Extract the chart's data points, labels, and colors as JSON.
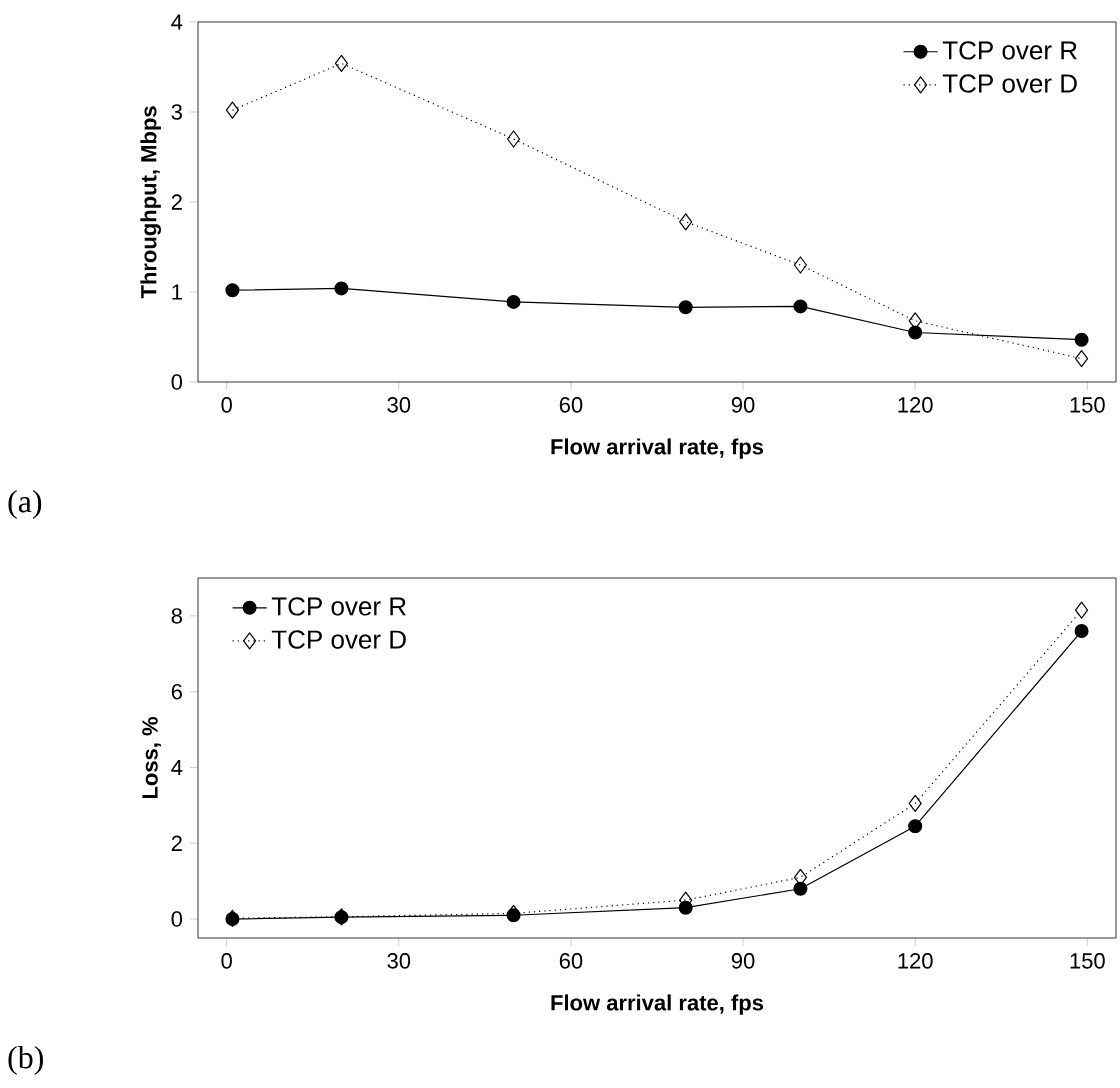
{
  "chart_data": [
    {
      "type": "line",
      "xlabel": "Flow arrival rate, fps",
      "ylabel": "Throughput, Mbps",
      "annotations": [
        "(a)"
      ],
      "x": [
        1,
        20,
        50,
        80,
        100,
        120,
        149
      ],
      "xlim": [
        -5,
        155
      ],
      "xticks": [
        0,
        30,
        60,
        90,
        120,
        150
      ],
      "ylim": [
        0,
        4
      ],
      "yticks": [
        0,
        1,
        2,
        3,
        4
      ],
      "legend": "top right",
      "grid": false,
      "series": [
        {
          "name": "TCP over R",
          "color": "#000000",
          "marker": "circle",
          "line_style": "solid",
          "values": [
            1.02,
            1.04,
            0.89,
            0.83,
            0.84,
            0.55,
            0.47
          ]
        },
        {
          "name": "TCP over D",
          "color": "#000000",
          "marker": "diamond",
          "line_style": "dotted",
          "values": [
            3.02,
            3.54,
            2.7,
            1.78,
            1.3,
            0.68,
            0.26
          ]
        }
      ]
    },
    {
      "type": "line",
      "xlabel": "Flow arrival rate, fps",
      "ylabel": "Loss, %",
      "annotations": [
        "(b)"
      ],
      "x": [
        1,
        20,
        50,
        80,
        100,
        120,
        149
      ],
      "xlim": [
        -5,
        155
      ],
      "xticks": [
        0,
        30,
        60,
        90,
        120,
        150
      ],
      "ylim": [
        -0.5,
        9
      ],
      "yticks": [
        0,
        2,
        4,
        6,
        8
      ],
      "legend": "top left",
      "grid": false,
      "series": [
        {
          "name": "TCP over R",
          "color": "#000000",
          "marker": "circle",
          "line_style": "solid",
          "values": [
            0,
            0.05,
            0.1,
            0.3,
            0.8,
            2.45,
            7.6
          ]
        },
        {
          "name": "TCP over D",
          "color": "#000000",
          "marker": "diamond",
          "line_style": "dotted",
          "values": [
            0.02,
            0.06,
            0.15,
            0.5,
            1.1,
            3.05,
            8.15
          ]
        }
      ]
    }
  ]
}
